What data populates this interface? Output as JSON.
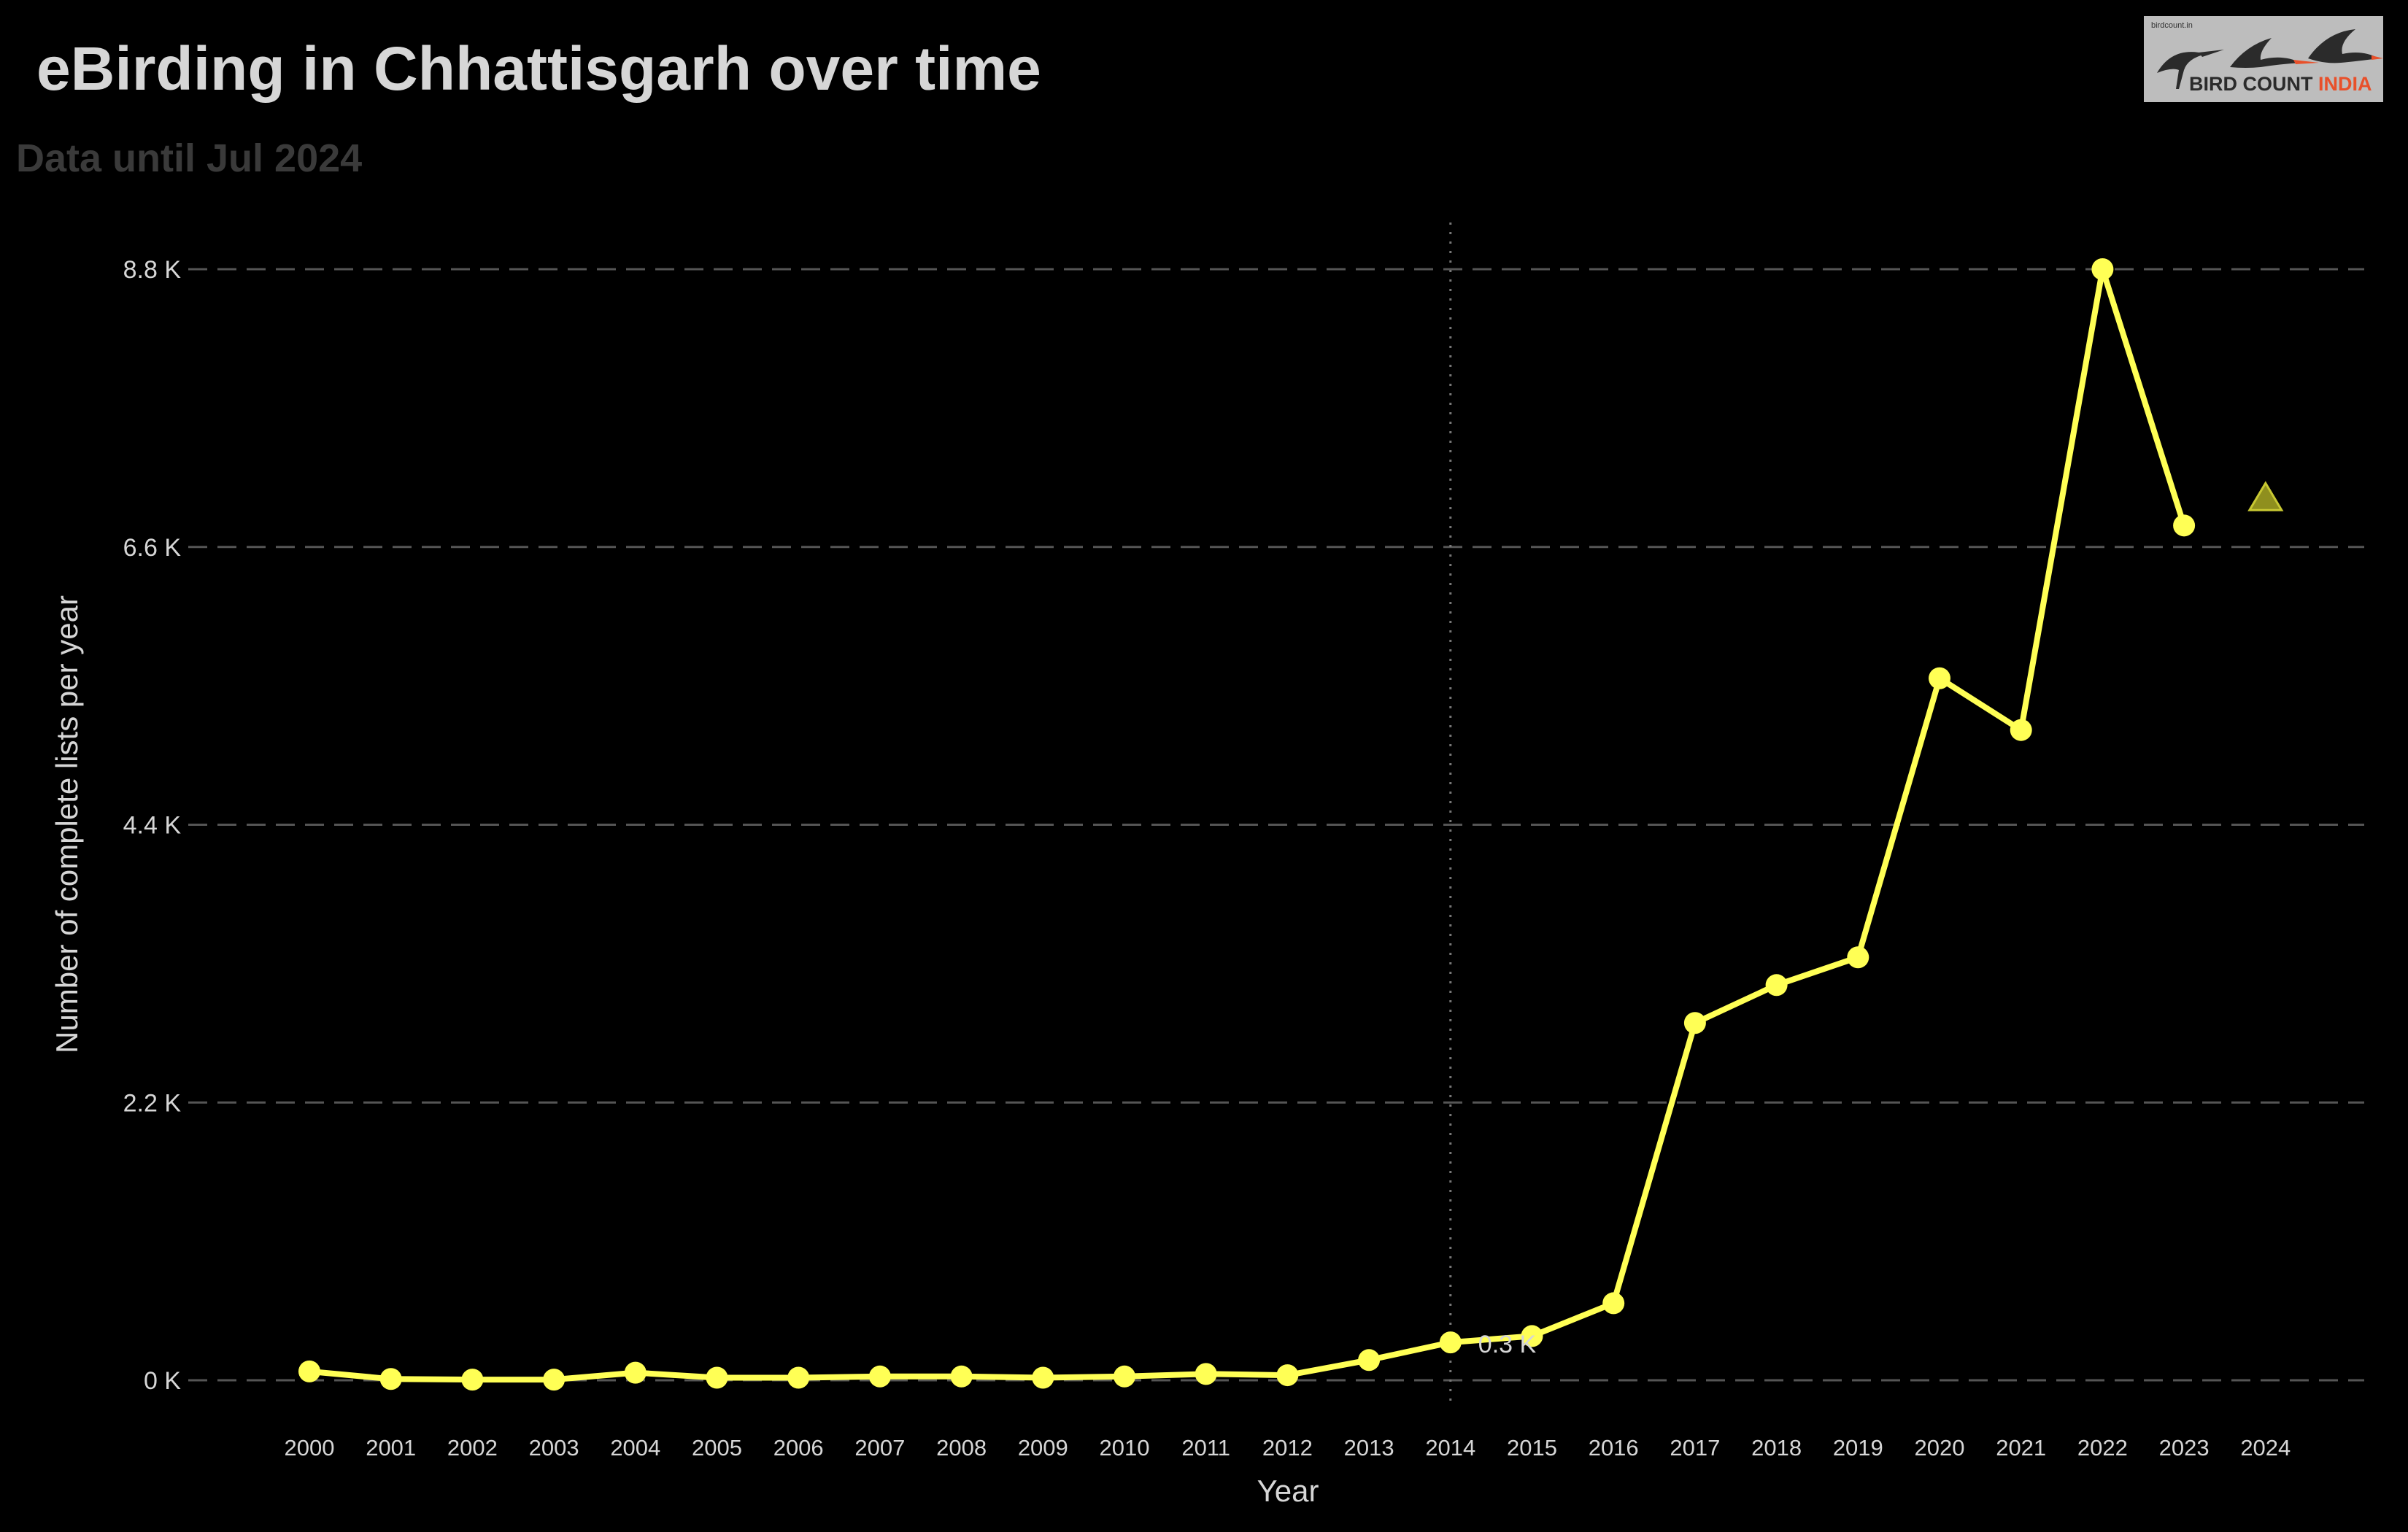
{
  "header": {
    "title": "eBirding in Chhattisgarh over time",
    "subtitle": "Data until Jul 2024"
  },
  "logo": {
    "small_text": "birdcount.in",
    "text_part1": "BIRD COUNT ",
    "text_part2": "INDIA",
    "icon": "bird-count-india-birds-logo"
  },
  "colors": {
    "background": "#000000",
    "line": "#ffff55",
    "text": "#d6d6d6",
    "grid": "#555555",
    "triangle_fill": "#8f8f1e",
    "triangle_stroke": "#c8c832"
  },
  "chart_data": {
    "type": "line",
    "title": "eBirding in Chhattisgarh over time",
    "subtitle": "Data until Jul 2024",
    "xlabel": "Year",
    "ylabel": "Number of complete lists per year",
    "x": [
      2000,
      2001,
      2002,
      2003,
      2004,
      2005,
      2006,
      2007,
      2008,
      2009,
      2010,
      2011,
      2012,
      2013,
      2014,
      2015,
      2016,
      2017,
      2018,
      2019,
      2020,
      2021,
      2022,
      2023
    ],
    "series": [
      {
        "values": [
          70,
          10,
          5,
          5,
          60,
          20,
          20,
          30,
          30,
          20,
          30,
          50,
          40,
          160,
          300,
          350,
          610,
          2830,
          3130,
          3350,
          5560,
          5150,
          8800,
          6770
        ]
      }
    ],
    "projected": {
      "x": 2024,
      "y": 6990,
      "marker": "triangle"
    },
    "ylim": [
      0,
      8800
    ],
    "yticks": [
      0,
      2200,
      4400,
      6600,
      8800
    ],
    "ytick_labels": [
      "0 K",
      "2.2 K",
      "4.4 K",
      "6.6 K",
      "8.8 K"
    ],
    "xticks": [
      2000,
      2001,
      2002,
      2003,
      2004,
      2005,
      2006,
      2007,
      2008,
      2009,
      2010,
      2011,
      2012,
      2013,
      2014,
      2015,
      2016,
      2017,
      2018,
      2019,
      2020,
      2021,
      2022,
      2023,
      2024
    ],
    "reference_line": {
      "x": 2014
    },
    "annotation": {
      "x": 2014,
      "y": 300,
      "text": "0.3 K"
    },
    "grid": "horizontal-dashed",
    "legend": "none"
  }
}
